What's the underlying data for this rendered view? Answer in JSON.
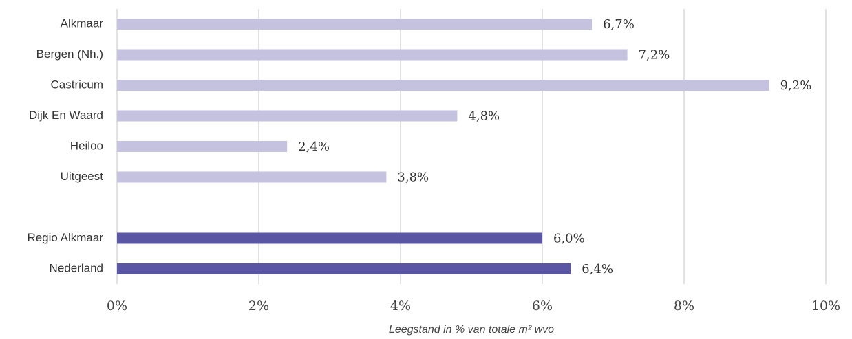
{
  "chart_data": {
    "type": "hbar",
    "x_label": "Leegstand in % van totale m² wvo",
    "categories": [
      "Alkmaar",
      "Bergen (Nh.)",
      "Castricum",
      "Dijk En Waard",
      "Heiloo",
      "Uitgeest",
      null,
      "Regio Alkmaar",
      "Nederland"
    ],
    "values": [
      6.7,
      7.2,
      9.2,
      4.8,
      2.4,
      3.8,
      null,
      6.0,
      6.4
    ],
    "value_labels": [
      "6,7%",
      "7,2%",
      "9,2%",
      "4,8%",
      "2,4%",
      "3,8%",
      null,
      "6,0%",
      "6,4%"
    ],
    "colors": [
      "#c5c2e0",
      "#c5c2e0",
      "#c5c2e0",
      "#c5c2e0",
      "#c5c2e0",
      "#c5c2e0",
      null,
      "#5b56a4",
      "#5b56a4"
    ],
    "xlim": [
      0,
      10
    ],
    "xticks": [
      {
        "value": 0,
        "label": "0%"
      },
      {
        "value": 2,
        "label": "2%"
      },
      {
        "value": 4,
        "label": "4%"
      },
      {
        "value": 6,
        "label": "6%"
      },
      {
        "value": 8,
        "label": "8%"
      },
      {
        "value": 10,
        "label": "10%"
      }
    ],
    "grid": true
  }
}
